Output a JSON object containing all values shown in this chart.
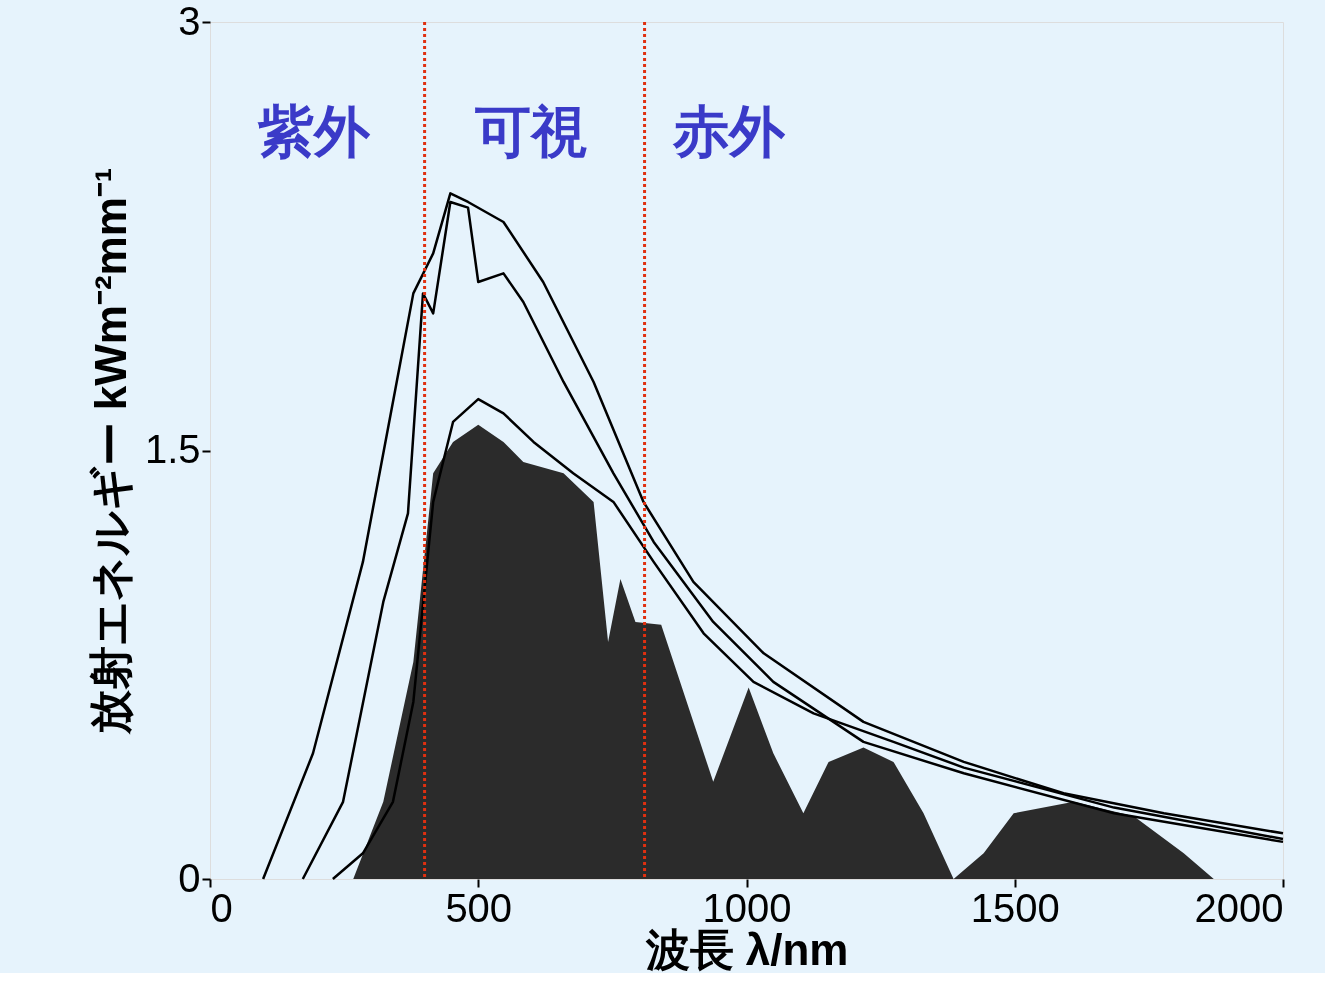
{
  "chart_data": {
    "type": "line",
    "xlabel": "波長 λ/nm",
    "ylabel": "放射エネルギー kWm⁻²mm⁻¹",
    "xlim": [
      0,
      2000
    ],
    "ylim": [
      0,
      3
    ],
    "xticks": [
      0,
      500,
      1000,
      1500,
      2000
    ],
    "yticks": [
      0,
      1.5,
      3
    ],
    "grid": false,
    "line_style": "solid",
    "marker": "none",
    "series": [
      {
        "type": "area",
        "color": "#2b2b2b",
        "x": [
          267,
          323,
          379,
          416,
          453,
          500,
          547,
          584,
          659,
          715,
          742,
          765,
          793,
          841,
          901,
          938,
          1004,
          1050,
          1106,
          1153,
          1218,
          1274,
          1330,
          1386,
          1442,
          1498,
          1610,
          1722,
          1815,
          1871,
          2000
        ],
        "values": [
          0,
          0.27,
          0.76,
          1.42,
          1.53,
          1.59,
          1.53,
          1.46,
          1.42,
          1.32,
          0.83,
          1.05,
          0.9,
          0.89,
          0.55,
          0.34,
          0.67,
          0.44,
          0.23,
          0.41,
          0.46,
          0.41,
          0.23,
          0,
          0.09,
          0.23,
          0.27,
          0.22,
          0.09,
          0,
          0
        ]
      },
      {
        "color": "#000000",
        "x": [
          99,
          192,
          285,
          341,
          379,
          416,
          448,
          481,
          547,
          621,
          715,
          808,
          901,
          1032,
          1218,
          1405,
          1591,
          1778,
          2000
        ],
        "values": [
          0,
          0.44,
          1.11,
          1.67,
          2.05,
          2.19,
          2.4,
          2.37,
          2.3,
          2.09,
          1.74,
          1.32,
          1.04,
          0.79,
          0.55,
          0.41,
          0.3,
          0.23,
          0.16
        ]
      },
      {
        "color": "#000000",
        "x": [
          173,
          248,
          323,
          369,
          397,
          416,
          448,
          481,
          500,
          547,
          584,
          659,
          752,
          827,
          938,
          1050,
          1218,
          1405,
          1685,
          2000
        ],
        "values": [
          0,
          0.27,
          0.97,
          1.28,
          2.05,
          1.98,
          2.37,
          2.35,
          2.09,
          2.12,
          2.02,
          1.74,
          1.42,
          1.18,
          0.9,
          0.69,
          0.48,
          0.37,
          0.23,
          0.13
        ]
      },
      {
        "color": "#000000",
        "x": [
          229,
          285,
          341,
          379,
          416,
          453,
          500,
          547,
          603,
          677,
          752,
          827,
          920,
          1013,
          1125,
          1274,
          1405,
          1685,
          2000
        ],
        "values": [
          0,
          0.09,
          0.27,
          0.62,
          1.32,
          1.6,
          1.68,
          1.63,
          1.53,
          1.42,
          1.32,
          1.11,
          0.86,
          0.69,
          0.58,
          0.48,
          0.39,
          0.25,
          0.14
        ]
      }
    ],
    "ref_lines": [
      {
        "axis": "x",
        "value": 400,
        "color": "#e03010",
        "line_style": "dotted"
      },
      {
        "axis": "x",
        "value": 810,
        "color": "#e03010",
        "line_style": "dotted"
      }
    ],
    "annotations": [
      "紫外",
      "可視",
      "赤外"
    ]
  }
}
